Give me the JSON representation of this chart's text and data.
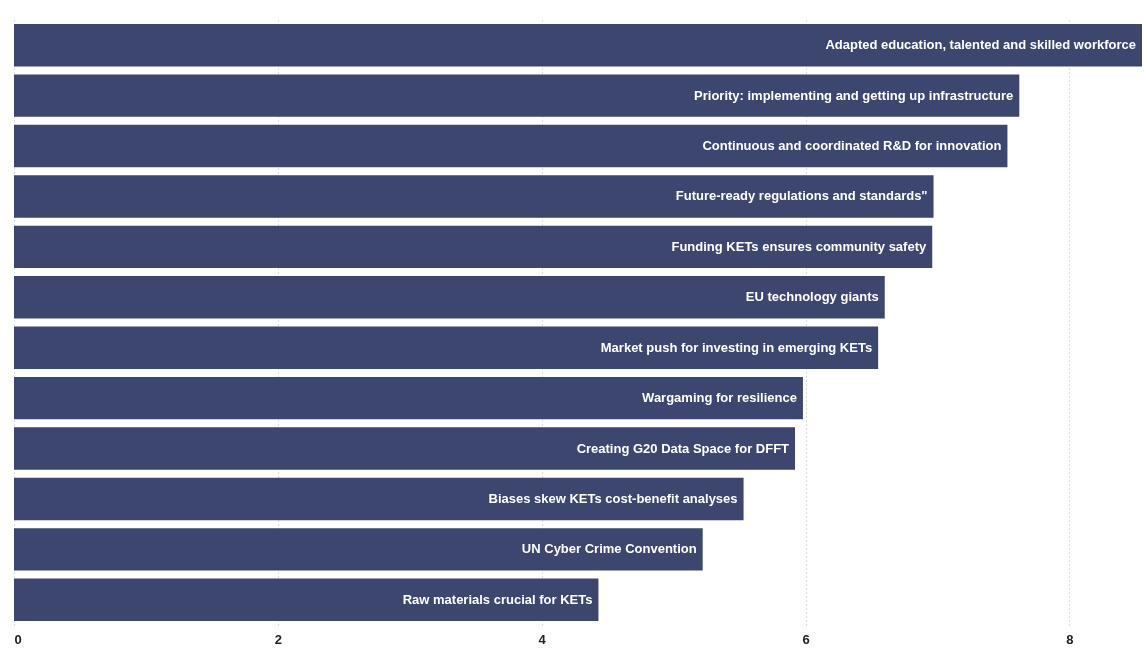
{
  "chart_data": {
    "type": "bar",
    "orientation": "horizontal",
    "categories": [
      "Adapted education, talented and skilled workforce",
      "Priority: implementing and getting up infrastructure",
      "Continuous and coordinated R&D for innovation",
      "Future-ready regulations and standards\"",
      "Funding KETs ensures community safety",
      "EU technology giants",
      "Market push for investing in emerging KETs",
      "Wargaming for resilience",
      "Creating G20 Data Space for DFFT",
      "Biases skew KETs cost-benefit analyses",
      "UN Cyber Crime Convention",
      "Raw materials crucial for KETs"
    ],
    "values": [
      8.55,
      7.62,
      7.53,
      6.97,
      6.96,
      6.6,
      6.55,
      5.98,
      5.92,
      5.53,
      5.22,
      4.43
    ],
    "color": "#3d466e",
    "xlim": [
      0,
      8.55
    ],
    "xticks": [
      0,
      2,
      4,
      6,
      8
    ],
    "grid": "x"
  }
}
